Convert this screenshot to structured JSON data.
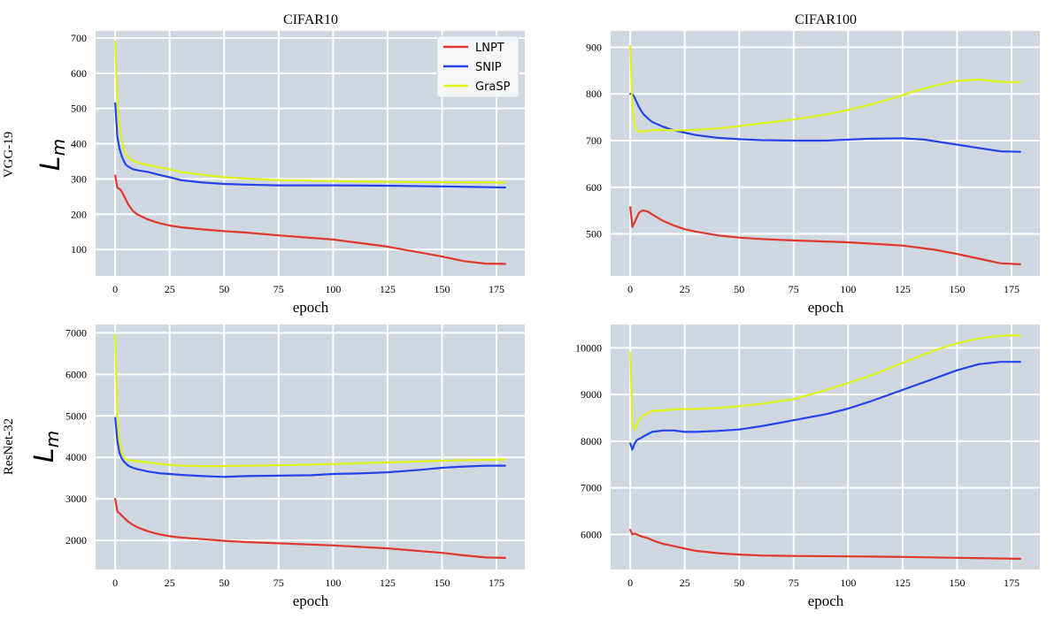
{
  "colors": {
    "panel_bg": "#cfd7e0",
    "grid": "#ffffff",
    "LNPT": "#e0382c",
    "SNIP": "#2344ea",
    "GraSP": "#dff218"
  },
  "row_labels": [
    "VGG-19",
    "ResNet-32"
  ],
  "ylabel_main": "L",
  "ylabel_sub": "m",
  "chart_data": [
    {
      "type": "line",
      "title": "CIFAR10",
      "row": "VGG-19",
      "xlabel": "epoch",
      "ylabel": "L_m",
      "xlim": [
        -9,
        188
      ],
      "ylim": [
        25,
        720
      ],
      "xticks": [
        0,
        25,
        50,
        75,
        100,
        125,
        150,
        175
      ],
      "yticks": [
        100,
        200,
        300,
        400,
        500,
        600,
        700
      ],
      "legend": "top-right",
      "series": [
        {
          "name": "LNPT",
          "x": [
            0,
            1,
            2,
            3,
            4,
            5,
            6,
            8,
            10,
            15,
            20,
            25,
            30,
            40,
            50,
            60,
            75,
            100,
            125,
            150,
            160,
            170,
            179
          ],
          "y": [
            310,
            275,
            272,
            265,
            252,
            240,
            228,
            210,
            200,
            185,
            175,
            168,
            163,
            157,
            152,
            148,
            140,
            128,
            108,
            80,
            67,
            60,
            59
          ]
        },
        {
          "name": "SNIP",
          "x": [
            0,
            1,
            2,
            3,
            4,
            5,
            6,
            8,
            10,
            15,
            20,
            25,
            30,
            40,
            50,
            60,
            75,
            100,
            125,
            150,
            179
          ],
          "y": [
            515,
            420,
            385,
            365,
            350,
            340,
            335,
            328,
            325,
            320,
            312,
            305,
            297,
            290,
            286,
            284,
            282,
            282,
            281,
            279,
            276
          ]
        },
        {
          "name": "GraSP",
          "x": [
            0,
            1,
            2,
            3,
            4,
            5,
            6,
            8,
            10,
            15,
            20,
            25,
            30,
            40,
            50,
            60,
            75,
            100,
            125,
            150,
            179
          ],
          "y": [
            690,
            520,
            450,
            410,
            385,
            370,
            362,
            352,
            347,
            340,
            333,
            327,
            320,
            312,
            305,
            301,
            297,
            294,
            292,
            291,
            290
          ]
        }
      ]
    },
    {
      "type": "line",
      "title": "CIFAR100",
      "row": "VGG-19",
      "xlabel": "epoch",
      "ylabel": "L_m",
      "xlim": [
        -9,
        188
      ],
      "ylim": [
        410,
        935
      ],
      "xticks": [
        0,
        25,
        50,
        75,
        100,
        125,
        150,
        175
      ],
      "yticks": [
        500,
        600,
        700,
        800,
        900
      ],
      "series": [
        {
          "name": "LNPT",
          "x": [
            0,
            1,
            2,
            3,
            4,
            5,
            6,
            8,
            10,
            15,
            20,
            25,
            30,
            40,
            50,
            60,
            75,
            100,
            125,
            140,
            150,
            160,
            170,
            179
          ],
          "y": [
            557,
            515,
            525,
            535,
            545,
            549,
            550,
            548,
            542,
            528,
            518,
            510,
            505,
            497,
            492,
            489,
            486,
            482,
            475,
            466,
            457,
            447,
            437,
            435
          ]
        },
        {
          "name": "SNIP",
          "x": [
            0,
            1,
            2,
            3,
            4,
            5,
            6,
            8,
            10,
            15,
            20,
            25,
            30,
            40,
            50,
            60,
            75,
            90,
            100,
            110,
            125,
            135,
            145,
            160,
            170,
            179
          ],
          "y": [
            800,
            800,
            792,
            782,
            772,
            764,
            757,
            748,
            740,
            730,
            722,
            717,
            712,
            706,
            703,
            701,
            700,
            700,
            702,
            704,
            705,
            702,
            695,
            684,
            677,
            676
          ]
        },
        {
          "name": "GraSP",
          "x": [
            0,
            1,
            2,
            3,
            4,
            5,
            6,
            8,
            10,
            15,
            20,
            25,
            30,
            40,
            50,
            60,
            75,
            90,
            100,
            110,
            120,
            130,
            140,
            150,
            160,
            170,
            179
          ],
          "y": [
            903,
            770,
            735,
            722,
            719,
            719,
            720,
            721,
            722,
            723,
            722,
            722,
            723,
            726,
            731,
            737,
            745,
            756,
            766,
            777,
            790,
            805,
            818,
            828,
            831,
            826,
            825
          ]
        }
      ]
    },
    {
      "type": "line",
      "title": "",
      "row": "ResNet-32",
      "xlabel": "epoch",
      "ylabel": "L_m",
      "xlim": [
        -9,
        188
      ],
      "ylim": [
        1300,
        7200
      ],
      "xticks": [
        0,
        25,
        50,
        75,
        100,
        125,
        150,
        175
      ],
      "yticks": [
        2000,
        3000,
        4000,
        5000,
        6000,
        7000
      ],
      "series": [
        {
          "name": "LNPT",
          "x": [
            0,
            1,
            2,
            3,
            4,
            5,
            6,
            8,
            10,
            15,
            20,
            25,
            30,
            40,
            50,
            60,
            75,
            100,
            125,
            150,
            160,
            170,
            179
          ],
          "y": [
            3000,
            2700,
            2650,
            2600,
            2550,
            2500,
            2450,
            2380,
            2320,
            2220,
            2150,
            2100,
            2070,
            2030,
            1990,
            1960,
            1930,
            1880,
            1810,
            1700,
            1640,
            1590,
            1580
          ]
        },
        {
          "name": "SNIP",
          "x": [
            0,
            1,
            2,
            3,
            4,
            5,
            6,
            8,
            10,
            15,
            20,
            25,
            30,
            40,
            50,
            60,
            75,
            90,
            100,
            110,
            125,
            140,
            150,
            160,
            170,
            179
          ],
          "y": [
            4950,
            4400,
            4100,
            3980,
            3900,
            3850,
            3800,
            3750,
            3720,
            3660,
            3620,
            3600,
            3580,
            3550,
            3530,
            3550,
            3560,
            3570,
            3600,
            3610,
            3640,
            3700,
            3750,
            3780,
            3800,
            3800
          ]
        },
        {
          "name": "GraSP",
          "x": [
            0,
            1,
            2,
            3,
            4,
            5,
            6,
            8,
            10,
            15,
            20,
            25,
            30,
            40,
            50,
            60,
            75,
            100,
            125,
            150,
            179
          ],
          "y": [
            6950,
            5000,
            4400,
            4100,
            4000,
            3950,
            3930,
            3920,
            3910,
            3880,
            3850,
            3820,
            3800,
            3790,
            3790,
            3800,
            3810,
            3840,
            3880,
            3920,
            3950
          ]
        }
      ]
    },
    {
      "type": "line",
      "title": "",
      "row": "ResNet-32",
      "xlabel": "epoch",
      "ylabel": "L_m",
      "xlim": [
        -9,
        188
      ],
      "ylim": [
        5250,
        10500
      ],
      "xticks": [
        0,
        25,
        50,
        75,
        100,
        125,
        150,
        175
      ],
      "yticks": [
        6000,
        7000,
        8000,
        9000,
        10000
      ],
      "series": [
        {
          "name": "LNPT",
          "x": [
            0,
            1,
            2,
            3,
            4,
            5,
            6,
            8,
            10,
            15,
            20,
            25,
            30,
            40,
            50,
            60,
            75,
            100,
            125,
            150,
            179
          ],
          "y": [
            6100,
            6000,
            6020,
            6000,
            5980,
            5960,
            5950,
            5920,
            5880,
            5800,
            5750,
            5700,
            5650,
            5600,
            5570,
            5550,
            5540,
            5530,
            5520,
            5500,
            5480
          ]
        },
        {
          "name": "SNIP",
          "x": [
            0,
            1,
            2,
            3,
            4,
            5,
            6,
            8,
            10,
            15,
            20,
            25,
            30,
            40,
            50,
            60,
            75,
            90,
            100,
            110,
            125,
            140,
            150,
            160,
            170,
            179
          ],
          "y": [
            7950,
            7820,
            7950,
            8020,
            8050,
            8070,
            8100,
            8150,
            8200,
            8230,
            8230,
            8200,
            8200,
            8220,
            8250,
            8320,
            8450,
            8580,
            8700,
            8850,
            9100,
            9350,
            9520,
            9650,
            9700,
            9700
          ]
        },
        {
          "name": "GraSP",
          "x": [
            0,
            1,
            2,
            3,
            4,
            5,
            6,
            8,
            10,
            15,
            20,
            25,
            30,
            40,
            50,
            60,
            75,
            90,
            100,
            110,
            125,
            140,
            150,
            160,
            170,
            179
          ],
          "y": [
            9900,
            8400,
            8250,
            8350,
            8450,
            8500,
            8550,
            8600,
            8650,
            8660,
            8680,
            8690,
            8690,
            8710,
            8750,
            8800,
            8900,
            9100,
            9250,
            9400,
            9680,
            9950,
            10100,
            10200,
            10260,
            10270
          ]
        }
      ]
    }
  ]
}
